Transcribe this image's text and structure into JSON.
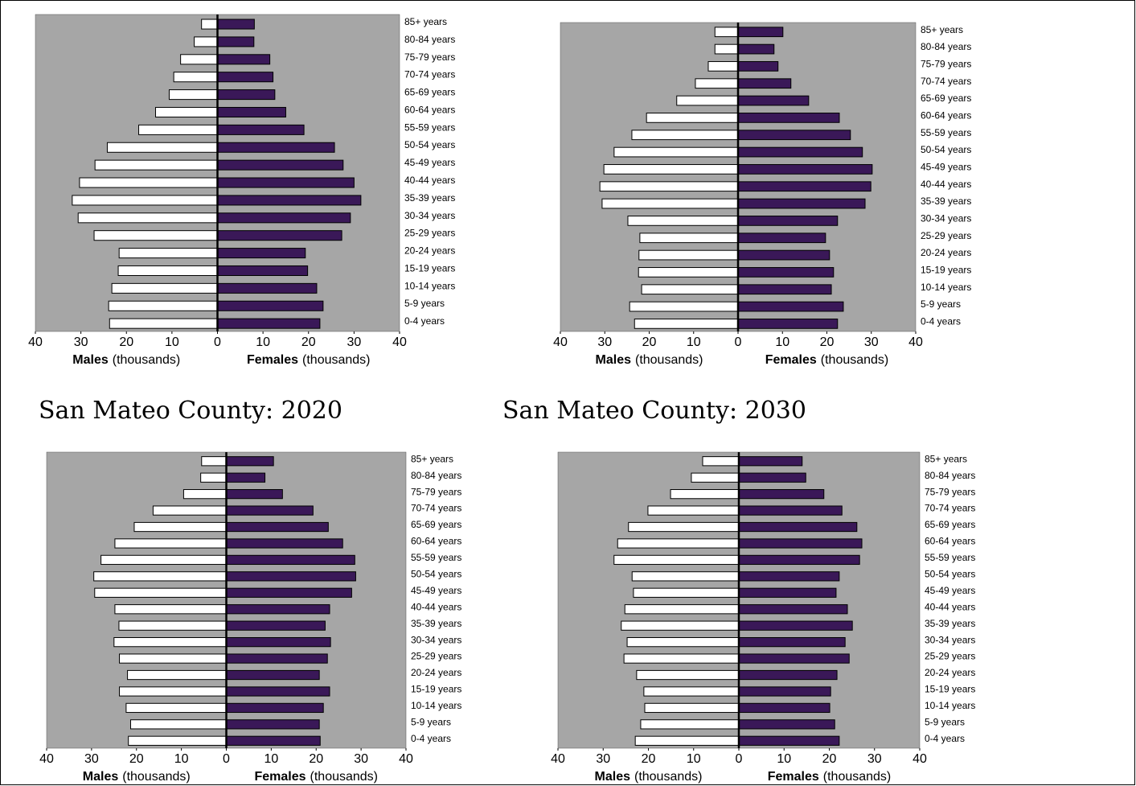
{
  "chart_data": [
    {
      "type": "bar",
      "orientation": "horizontal",
      "categories": [
        "85+ years",
        "80-84 years",
        "75-79 years",
        "70-74 years",
        "65-69 years",
        "60-64 years",
        "55-59 years",
        "50-54 years",
        "45-49 years",
        "40-44 years",
        "35-39 years",
        "30-34 years",
        "25-29 years",
        "20-24 years",
        "15-19 years",
        "10-14 years",
        "5-9 years",
        "0-4 years"
      ],
      "series": [
        {
          "color": "#ffffff",
          "values": [
            -3.5,
            -5.1,
            -8.1,
            -9.6,
            -10.6,
            -13.6,
            -17.3,
            -24.2,
            -26.9,
            -30.3,
            -31.9,
            -30.6,
            -27.1,
            -21.6,
            -21.8,
            -23.2,
            -23.9,
            -23.7
          ]
        },
        {
          "color": "#3a1858",
          "values": [
            8.1,
            8,
            11.5,
            12.2,
            12.6,
            15,
            19,
            25.7,
            27.6,
            30,
            31.5,
            29.2,
            27.3,
            19.3,
            19.8,
            21.8,
            23.2,
            22.5
          ]
        }
      ],
      "xlabels": [
        {
          "strong": "Males",
          "text": "(thousands)"
        },
        {
          "strong": "Females",
          "text": "(thousands)"
        }
      ],
      "xlim": [
        -40,
        40
      ],
      "xticks": [
        {
          "value": -40,
          "label": "40"
        },
        {
          "value": -30,
          "label": "30"
        },
        {
          "value": -20,
          "label": "20"
        },
        {
          "value": -10,
          "label": "10"
        },
        0,
        10,
        20,
        30,
        40
      ],
      "background": "#a6a6a6"
    },
    {
      "type": "bar",
      "orientation": "horizontal",
      "categories": [
        "85+ years",
        "80-84 years",
        "75-79 years",
        "70-74 years",
        "65-69 years",
        "60-64 years",
        "55-59 years",
        "50-54 years",
        "45-49 years",
        "40-44 years",
        "35-39 years",
        "30-34 years",
        "25-29 years",
        "20-24 years",
        "15-19 years",
        "10-14 years",
        "5-9 years",
        "0-4 years"
      ],
      "series": [
        {
          "color": "#ffffff",
          "values": [
            -5.2,
            -5.2,
            -6.7,
            -9.6,
            -13.8,
            -20.6,
            -23.9,
            -27.9,
            -30.2,
            -31.1,
            -30.6,
            -24.8,
            -22.1,
            -22.3,
            -22.4,
            -21.7,
            -24.4,
            -23.3
          ]
        },
        {
          "color": "#3a1858",
          "values": [
            10.1,
            8.1,
            9,
            11.9,
            15.9,
            22.8,
            25.3,
            28,
            30.2,
            29.9,
            28.6,
            22.4,
            19.7,
            20.6,
            21.5,
            21,
            23.7,
            22.4
          ]
        }
      ],
      "xlabels": [
        {
          "strong": "Males",
          "text": "(thousands)"
        },
        {
          "strong": "Females",
          "text": "(thousands)"
        }
      ],
      "xlim": [
        -40,
        40
      ],
      "xticks": [
        {
          "value": -40,
          "label": "40"
        },
        {
          "value": -30,
          "label": "30"
        },
        {
          "value": -20,
          "label": "20"
        },
        {
          "value": -10,
          "label": "10"
        },
        0,
        10,
        20,
        30,
        40
      ],
      "background": "#a6a6a6"
    },
    {
      "type": "bar",
      "orientation": "horizontal",
      "title": "San Mateo County:  2020",
      "categories": [
        "85+ years",
        "80-84 years",
        "75-79 years",
        "70-74 years",
        "65-69 years",
        "60-64 years",
        "55-59 years",
        "50-54 years",
        "45-49 years",
        "40-44 years",
        "35-39 years",
        "30-34 years",
        "25-29 years",
        "20-24 years",
        "15-19 years",
        "10-14 years",
        "5-9 years",
        "0-4 years"
      ],
      "series": [
        {
          "color": "#ffffff",
          "values": [
            -5.5,
            -5.7,
            -9.5,
            -16.3,
            -20.5,
            -24.8,
            -27.9,
            -29.5,
            -29.3,
            -24.8,
            -23.9,
            -25,
            -23.8,
            -22,
            -23.8,
            -22.3,
            -21.3,
            -21.8
          ]
        },
        {
          "color": "#3a1858",
          "values": [
            10.5,
            8.6,
            12.5,
            19.3,
            22.7,
            25.9,
            28.6,
            28.8,
            27.9,
            23,
            22,
            23.2,
            22.5,
            20.7,
            23,
            21.6,
            20.7,
            20.9
          ]
        }
      ],
      "xlabels": [
        {
          "strong": "Males",
          "text": "(thousands)"
        },
        {
          "strong": "Females",
          "text": "(thousands)"
        }
      ],
      "xlim": [
        -40,
        40
      ],
      "xticks": [
        {
          "value": -40,
          "label": "40"
        },
        {
          "value": -30,
          "label": "30"
        },
        {
          "value": -20,
          "label": "20"
        },
        {
          "value": -10,
          "label": "10"
        },
        0,
        10,
        20,
        30,
        40
      ],
      "background": "#a6a6a6"
    },
    {
      "type": "bar",
      "orientation": "horizontal",
      "title": "San Mateo County:  2030",
      "categories": [
        "85+ years",
        "80-84 years",
        "75-79 years",
        "70-74 years",
        "65-69 years",
        "60-64 years",
        "55-59 years",
        "50-54 years",
        "45-49 years",
        "40-44 years",
        "35-39 years",
        "30-34 years",
        "25-29 years",
        "20-24 years",
        "15-19 years",
        "10-14 years",
        "5-9 years",
        "0-4 years"
      ],
      "series": [
        {
          "color": "#ffffff",
          "values": [
            -8,
            -10.5,
            -15.1,
            -20.1,
            -24.4,
            -26.8,
            -27.6,
            -23.6,
            -23.3,
            -25.2,
            -26,
            -24.7,
            -25.4,
            -22.6,
            -21,
            -20.8,
            -21.7,
            -22.9
          ]
        },
        {
          "color": "#3a1858",
          "values": [
            14,
            14.8,
            18.8,
            22.8,
            26.1,
            27.2,
            26.7,
            22.2,
            21.5,
            24,
            25.1,
            23.5,
            24.4,
            21.7,
            20.3,
            20.1,
            21.2,
            22.2
          ]
        }
      ],
      "xlabels": [
        {
          "strong": "Males",
          "text": "(thousands)"
        },
        {
          "strong": "Females",
          "text": "(thousands)"
        }
      ],
      "xlim": [
        -40,
        40
      ],
      "xticks": [
        {
          "value": -40,
          "label": "40"
        },
        {
          "value": -30,
          "label": "30"
        },
        {
          "value": -20,
          "label": "20"
        },
        {
          "value": -10,
          "label": "10"
        },
        0,
        10,
        20,
        30,
        40
      ],
      "background": "#a6a6a6"
    }
  ]
}
